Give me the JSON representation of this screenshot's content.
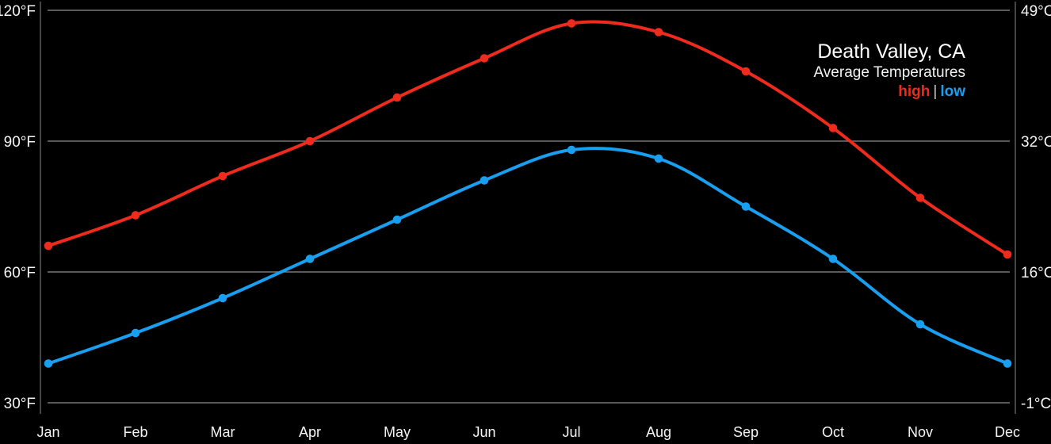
{
  "header": {
    "title": "Death Valley, CA",
    "subtitle": "Average Temperatures",
    "legend": {
      "high_label": "high",
      "separator": "|",
      "low_label": "low"
    }
  },
  "colors": {
    "background": "#000000",
    "high_series": "#ee2b1c",
    "low_series": "#189ff0",
    "gridline": "#787878",
    "axis_line": "#454545",
    "text": "#f4f4f4",
    "legend_separator": "#c9c9c9"
  },
  "chart_data": {
    "type": "line",
    "title": "Death Valley, CA",
    "subtitle": "Average Temperatures",
    "categories": [
      "Jan",
      "Feb",
      "Mar",
      "Apr",
      "May",
      "Jun",
      "Jul",
      "Aug",
      "Sep",
      "Oct",
      "Nov",
      "Dec"
    ],
    "series": [
      {
        "name": "high",
        "unit": "°F",
        "color": "#ee2b1c",
        "values": [
          66,
          73,
          82,
          90,
          100,
          109,
          117,
          115,
          106,
          93,
          77,
          64
        ]
      },
      {
        "name": "low",
        "unit": "°F",
        "color": "#189ff0",
        "values": [
          39,
          46,
          54,
          63,
          72,
          81,
          88,
          86,
          75,
          63,
          48,
          39
        ]
      }
    ],
    "left_axis": {
      "unit": "°F",
      "tick_labels": [
        "120°F",
        "90°F",
        "60°F",
        "30°F"
      ],
      "tick_values_f": [
        120,
        90,
        60,
        30
      ]
    },
    "right_axis": {
      "unit": "°C",
      "tick_labels": [
        "49°C",
        "32°C",
        "16°C",
        "-1°C"
      ],
      "tick_values_c": [
        49,
        32,
        16,
        -1
      ]
    },
    "ylim_f": [
      30,
      120
    ],
    "grid": "horizontal-only",
    "legend_position": "top-right",
    "legend_entries": [
      "high",
      "low"
    ],
    "point_markers": true,
    "smooth": true
  }
}
